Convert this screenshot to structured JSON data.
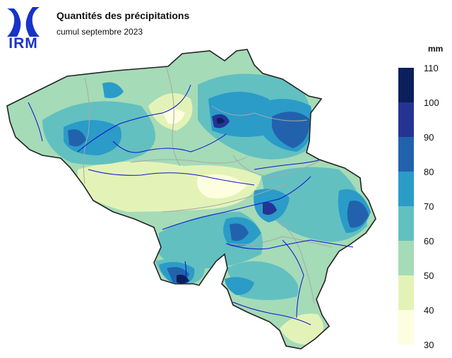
{
  "header": {
    "logo_text": "IRM",
    "title": "Quantités des précipitations",
    "subtitle": "cumul septembre 2023"
  },
  "legend": {
    "unit": "mm",
    "ticks": [
      "110",
      "100",
      "90",
      "80",
      "70",
      "60",
      "50",
      "40",
      "30"
    ],
    "bins": [
      {
        "from": 100,
        "to": 110,
        "color": "#0b1f5c"
      },
      {
        "from": 90,
        "to": 100,
        "color": "#253494"
      },
      {
        "from": 80,
        "to": 90,
        "color": "#2262ad"
      },
      {
        "from": 70,
        "to": 80,
        "color": "#2b9bc8"
      },
      {
        "from": 60,
        "to": 70,
        "color": "#62c0c1"
      },
      {
        "from": 50,
        "to": 60,
        "color": "#a5dbb7"
      },
      {
        "from": 40,
        "to": 50,
        "color": "#e3f3b7"
      },
      {
        "from": 30,
        "to": 40,
        "color": "#fdfedf"
      }
    ]
  },
  "map": {
    "region": "Belgium",
    "border_color": "#222222",
    "river_color": "#1010cc",
    "province_line_color": "#a8a8a8"
  }
}
